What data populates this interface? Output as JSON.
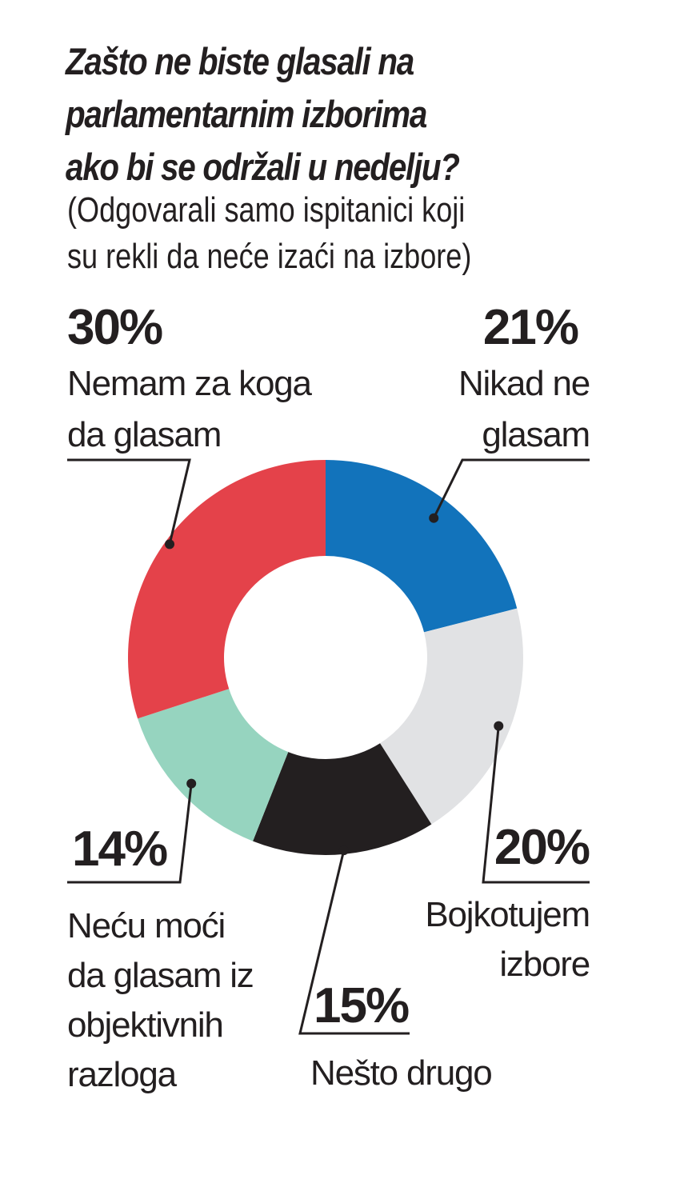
{
  "chart_data": {
    "type": "donut",
    "title_lines": [
      "Zašto ne biste glasali na",
      "parlamentarnim izborima",
      "ako bi se održali u nedelju?"
    ],
    "subtitle_lines": [
      "(Odgovarali samo ispitanici koji",
      "su rekli da neće izaći na izbore)"
    ],
    "slices": [
      {
        "pct_label": "21%",
        "value": 21,
        "label_lines": [
          "Nikad ne",
          "glasam"
        ],
        "color": "#1273bb"
      },
      {
        "pct_label": "20%",
        "value": 20,
        "label_lines": [
          "Bojkotujem",
          "izbore"
        ],
        "color": "#e1e2e4"
      },
      {
        "pct_label": "15%",
        "value": 15,
        "label_lines": [
          "Nešto drugo"
        ],
        "color": "#231f20"
      },
      {
        "pct_label": "14%",
        "value": 14,
        "label_lines": [
          "Neću moći",
          "da glasam iz",
          "objektivnih",
          "razloga"
        ],
        "color": "#96d4bf"
      },
      {
        "pct_label": "30%",
        "value": 30,
        "label_lines": [
          "Nemam za koga",
          "da glasam"
        ],
        "color": "#e4424a"
      }
    ]
  }
}
